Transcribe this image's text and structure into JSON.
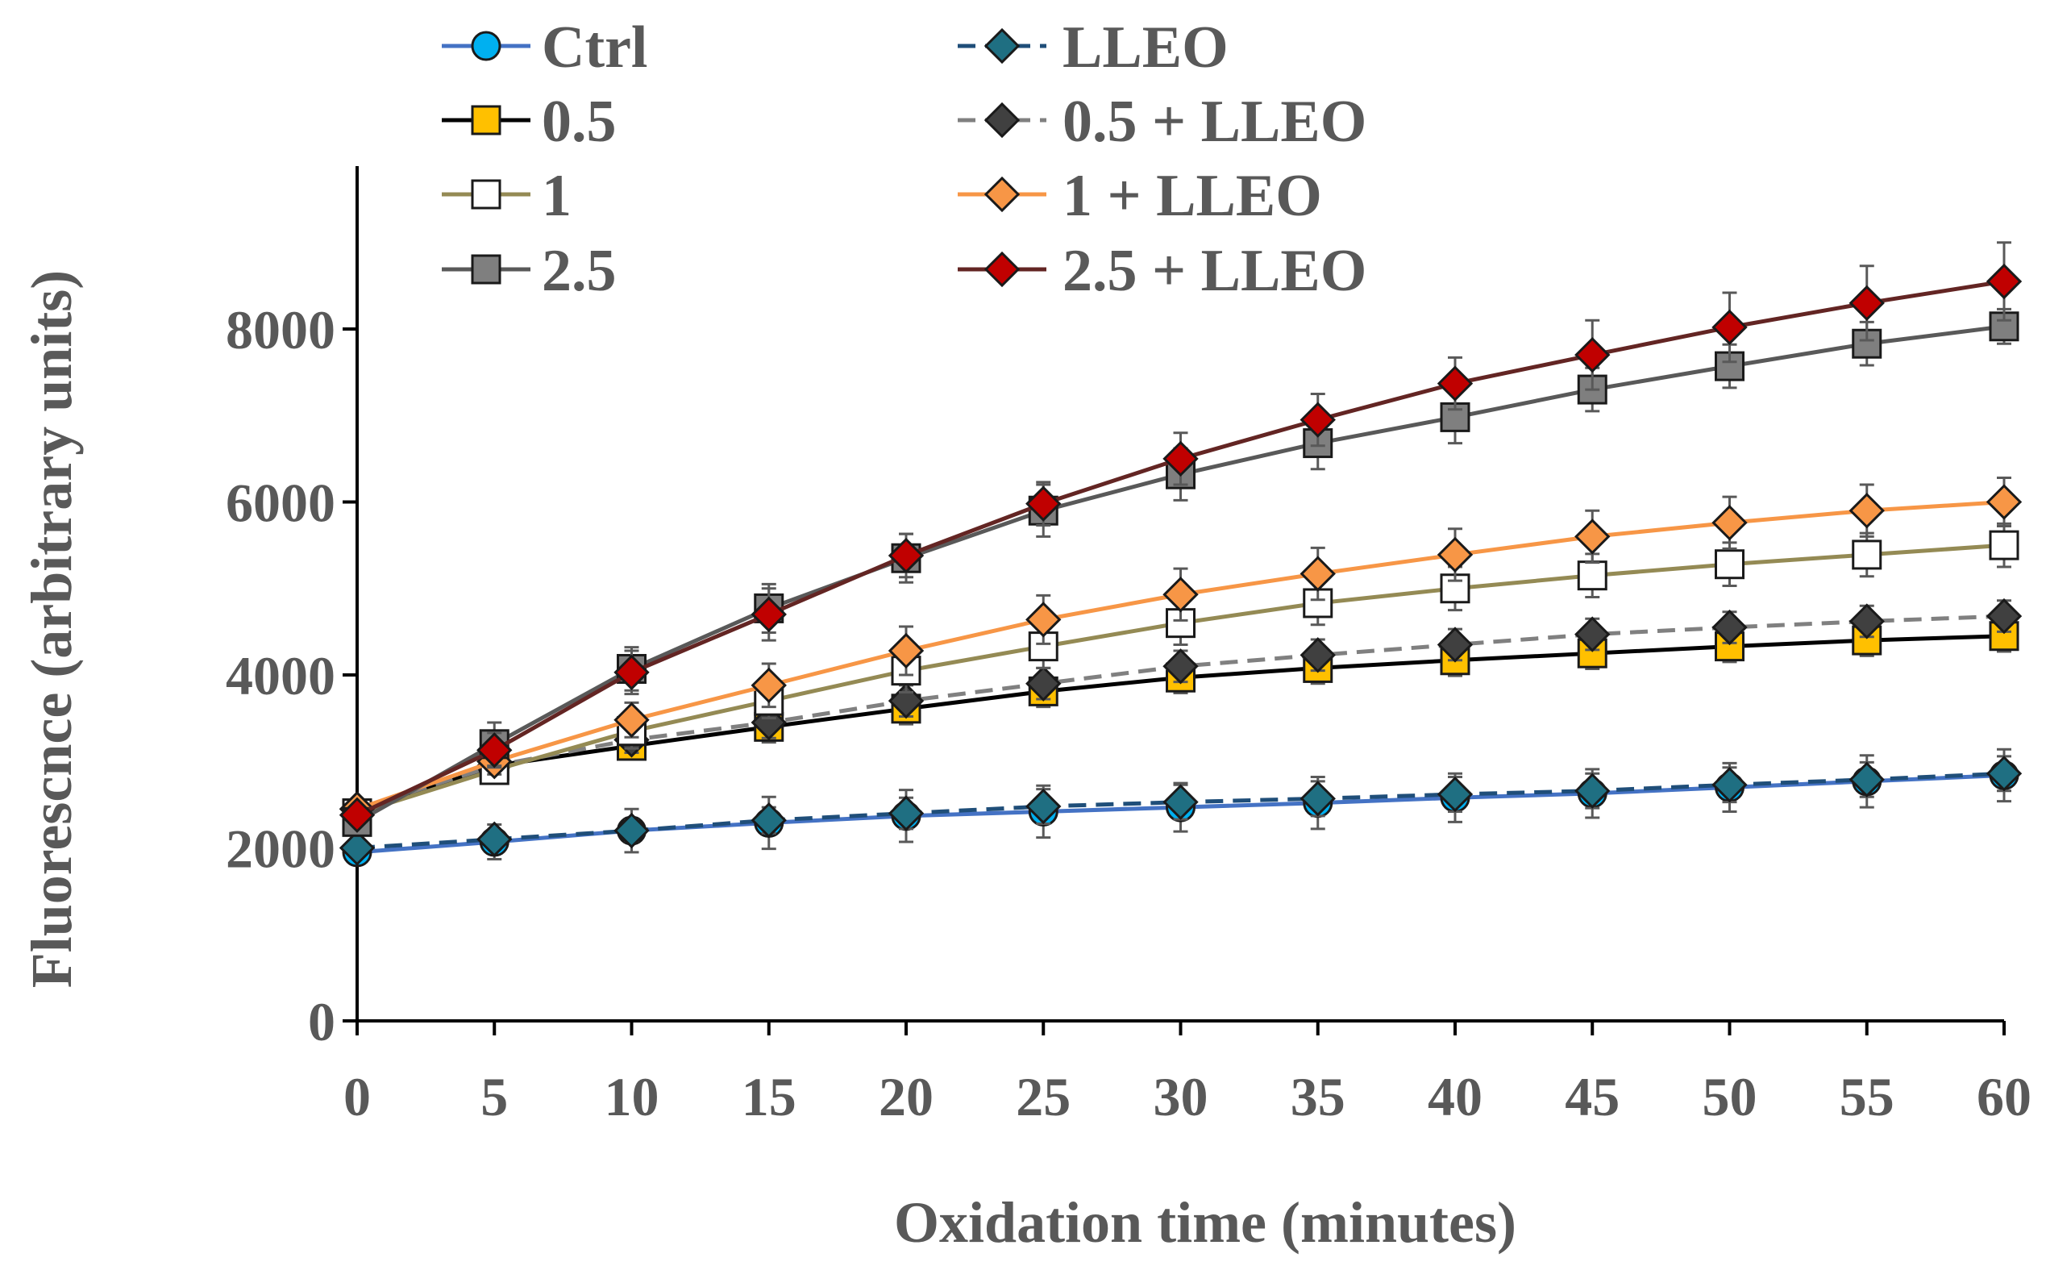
{
  "chart_data": {
    "type": "line",
    "title": "",
    "xlabel": "Oxidation time (minutes)",
    "ylabel": "Fluorescnce (arbitrary units)",
    "x": [
      0,
      5,
      10,
      15,
      20,
      25,
      30,
      35,
      40,
      45,
      50,
      55,
      60
    ],
    "x_ticks": [
      "0",
      "5",
      "10",
      "15",
      "20",
      "25",
      "30",
      "35",
      "40",
      "45",
      "50",
      "55",
      "60"
    ],
    "y_ticks": [
      "0",
      "2000",
      "4000",
      "6000",
      "8000"
    ],
    "xlim": [
      0,
      60
    ],
    "ylim": [
      0,
      10000
    ],
    "grid": false,
    "legend_position": "top",
    "series": [
      {
        "name": "Ctrl",
        "color": "#4472C4",
        "marker_fill": "#00B0F0",
        "marker": "circle",
        "dash": "solid",
        "values": [
          1950,
          2070,
          2200,
          2290,
          2370,
          2420,
          2470,
          2520,
          2580,
          2630,
          2700,
          2770,
          2840
        ],
        "errors": [
          80,
          200,
          250,
          300,
          300,
          300,
          280,
          300,
          280,
          280,
          280,
          300,
          300
        ]
      },
      {
        "name": "LLEO",
        "color": "#1F4E79",
        "marker_fill": "#1F6F82",
        "marker": "diamond",
        "dash": "dashed",
        "values": [
          2000,
          2100,
          2200,
          2320,
          2400,
          2480,
          2530,
          2570,
          2620,
          2660,
          2730,
          2790,
          2860
        ],
        "errors": [
          60,
          100,
          120,
          150,
          180,
          200,
          200,
          200,
          200,
          200,
          200,
          200,
          200
        ]
      },
      {
        "name": "0.5",
        "color": "#000000",
        "marker_fill": "#FFC000",
        "marker": "square",
        "dash": "solid",
        "values": [
          2400,
          2950,
          3180,
          3400,
          3610,
          3810,
          3970,
          4080,
          4170,
          4250,
          4330,
          4400,
          4450
        ],
        "errors": [
          100,
          150,
          150,
          180,
          180,
          180,
          180,
          180,
          180,
          180,
          180,
          180,
          180
        ]
      },
      {
        "name": "0.5 + LLEO",
        "color": "#808080",
        "marker_fill": "#404040",
        "marker": "diamond",
        "dash": "dashed",
        "values": [
          2450,
          2950,
          3250,
          3450,
          3700,
          3900,
          4100,
          4230,
          4350,
          4470,
          4550,
          4620,
          4680
        ],
        "errors": [
          100,
          150,
          150,
          180,
          180,
          180,
          180,
          180,
          180,
          180,
          180,
          180,
          180
        ]
      },
      {
        "name": "1",
        "color": "#948A54",
        "marker_fill": "#FFFFFF",
        "marker": "square",
        "dash": "solid",
        "values": [
          2400,
          2900,
          3350,
          3700,
          4050,
          4330,
          4600,
          4830,
          5000,
          5150,
          5280,
          5390,
          5500
        ],
        "errors": [
          100,
          150,
          200,
          200,
          250,
          250,
          250,
          250,
          250,
          250,
          250,
          250,
          250
        ]
      },
      {
        "name": "1 + LLEO",
        "color": "#F79646",
        "marker_fill": "#F79646",
        "marker": "diamond",
        "dash": "solid",
        "values": [
          2450,
          3000,
          3480,
          3880,
          4280,
          4640,
          4930,
          5170,
          5390,
          5600,
          5760,
          5900,
          6000
        ],
        "errors": [
          100,
          150,
          200,
          250,
          280,
          280,
          300,
          300,
          300,
          300,
          300,
          300,
          280
        ]
      },
      {
        "name": "2.5",
        "color": "#595959",
        "marker_fill": "#7F7F7F",
        "marker": "square",
        "dash": "solid",
        "values": [
          2300,
          3200,
          4070,
          4770,
          5350,
          5900,
          6320,
          6680,
          6980,
          7300,
          7570,
          7830,
          8030
        ],
        "errors": [
          100,
          250,
          250,
          280,
          280,
          300,
          300,
          300,
          300,
          250,
          250,
          250,
          200
        ]
      },
      {
        "name": "2.5 + LLEO",
        "color": "#632523",
        "marker_fill": "#C00000",
        "marker": "diamond",
        "dash": "solid",
        "values": [
          2380,
          3130,
          4030,
          4700,
          5380,
          5980,
          6500,
          6950,
          7370,
          7700,
          8020,
          8300,
          8550
        ],
        "errors": [
          100,
          200,
          250,
          300,
          250,
          250,
          300,
          300,
          300,
          400,
          400,
          430,
          450
        ]
      }
    ]
  }
}
